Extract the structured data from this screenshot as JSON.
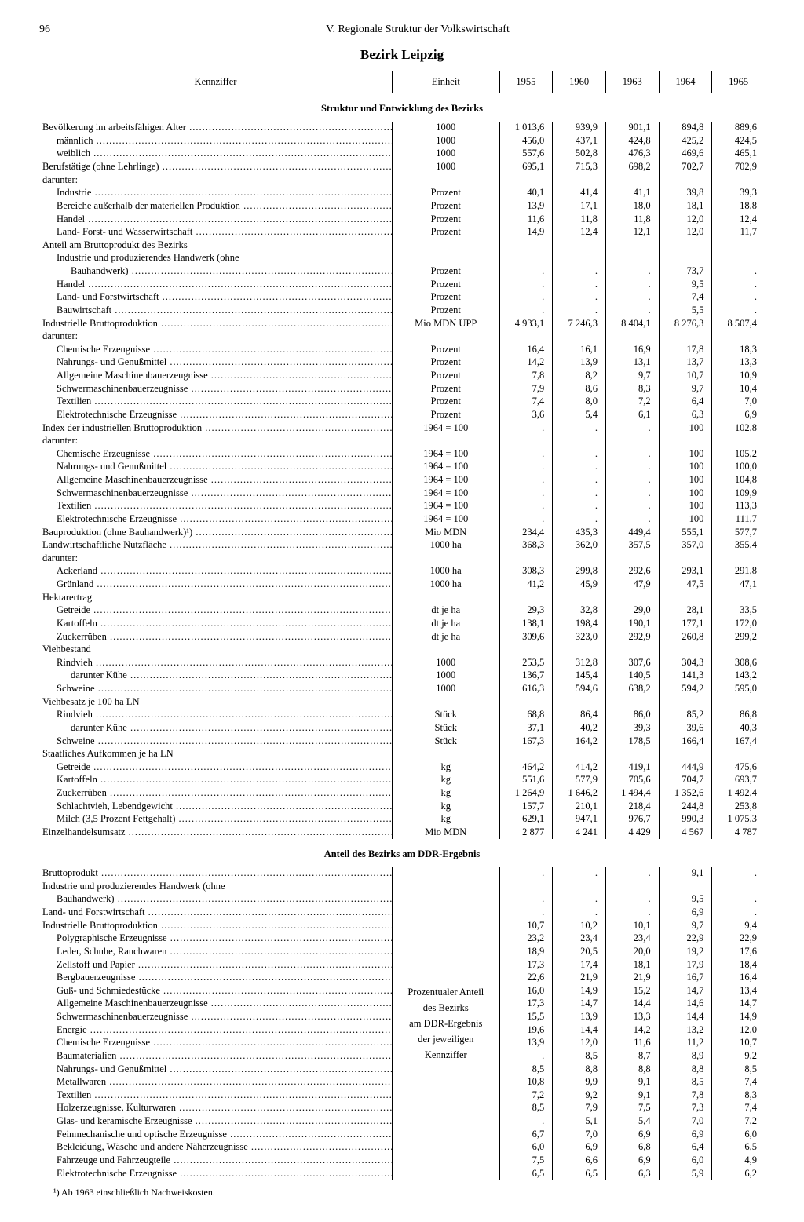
{
  "page_number": "96",
  "chapter_title": "V. Regionale Struktur der Volkswirtschaft",
  "region_title": "Bezirk Leipzig",
  "columns": [
    "Kennziffer",
    "Einheit",
    "1955",
    "1960",
    "1963",
    "1964",
    "1965"
  ],
  "section1_title": "Struktur und Entwicklung des Bezirks",
  "section2_title": "Anteil des Bezirks am DDR-Ergebnis",
  "merged_unit_lines": [
    "Prozentualer Anteil",
    "des Bezirks",
    "am DDR-Ergebnis",
    "der jeweiligen",
    "Kennziffer"
  ],
  "footnote": "¹) Ab 1963 einschließlich Nachweiskosten.",
  "rows1": [
    {
      "l": "Bevölkerung im arbeitsfähigen Alter",
      "d": 1,
      "i": 0,
      "u": "1000",
      "v": [
        "1 013,6",
        "939,9",
        "901,1",
        "894,8",
        "889,6"
      ]
    },
    {
      "l": "männlich",
      "d": 1,
      "i": 1,
      "u": "1000",
      "v": [
        "456,0",
        "437,1",
        "424,8",
        "425,2",
        "424,5"
      ]
    },
    {
      "l": "weiblich",
      "d": 1,
      "i": 1,
      "u": "1000",
      "v": [
        "557,6",
        "502,8",
        "476,3",
        "469,6",
        "465,1"
      ]
    },
    {
      "l": "Berufstätige (ohne Lehrlinge)",
      "d": 1,
      "i": 0,
      "u": "1000",
      "v": [
        "695,1",
        "715,3",
        "698,2",
        "702,7",
        "702,9"
      ]
    },
    {
      "l": "darunter:",
      "d": 0,
      "i": 0,
      "u": "",
      "v": [
        "",
        "",
        "",
        "",
        ""
      ]
    },
    {
      "l": "Industrie",
      "d": 1,
      "i": 1,
      "u": "Prozent",
      "v": [
        "40,1",
        "41,4",
        "41,1",
        "39,8",
        "39,3"
      ]
    },
    {
      "l": "Bereiche außerhalb der materiellen Produktion",
      "d": 1,
      "i": 1,
      "u": "Prozent",
      "v": [
        "13,9",
        "17,1",
        "18,0",
        "18,1",
        "18,8"
      ]
    },
    {
      "l": "Handel",
      "d": 1,
      "i": 1,
      "u": "Prozent",
      "v": [
        "11,6",
        "11,8",
        "11,8",
        "12,0",
        "12,4"
      ]
    },
    {
      "l": "Land- Forst- und Wasserwirtschaft",
      "d": 1,
      "i": 1,
      "u": "Prozent",
      "v": [
        "14,9",
        "12,4",
        "12,1",
        "12,0",
        "11,7"
      ]
    },
    {
      "l": "Anteil am Bruttoprodukt des Bezirks",
      "d": 0,
      "i": 0,
      "u": "",
      "v": [
        "",
        "",
        "",
        "",
        ""
      ]
    },
    {
      "l": "Industrie und produzierendes Handwerk (ohne",
      "d": 0,
      "i": 1,
      "u": "",
      "v": [
        "",
        "",
        "",
        "",
        ""
      ]
    },
    {
      "l": "Bauhandwerk)",
      "d": 1,
      "i": 2,
      "u": "Prozent",
      "v": [
        ".",
        ".",
        ".",
        "73,7",
        "."
      ]
    },
    {
      "l": "Handel",
      "d": 1,
      "i": 1,
      "u": "Prozent",
      "v": [
        ".",
        ".",
        ".",
        "9,5",
        "."
      ]
    },
    {
      "l": "Land- und Forstwirtschaft",
      "d": 1,
      "i": 1,
      "u": "Prozent",
      "v": [
        ".",
        ".",
        ".",
        "7,4",
        "."
      ]
    },
    {
      "l": "Bauwirtschaft",
      "d": 1,
      "i": 1,
      "u": "Prozent",
      "v": [
        ".",
        ".",
        ".",
        "5,5",
        "."
      ]
    },
    {
      "l": "Industrielle Bruttoproduktion",
      "d": 1,
      "i": 0,
      "u": "Mio MDN UPP",
      "v": [
        "4 933,1",
        "7 246,3",
        "8 404,1",
        "8 276,3",
        "8 507,4"
      ]
    },
    {
      "l": "darunter:",
      "d": 0,
      "i": 0,
      "u": "",
      "v": [
        "",
        "",
        "",
        "",
        ""
      ]
    },
    {
      "l": "Chemische Erzeugnisse",
      "d": 1,
      "i": 1,
      "u": "Prozent",
      "v": [
        "16,4",
        "16,1",
        "16,9",
        "17,8",
        "18,3"
      ]
    },
    {
      "l": "Nahrungs- und Genußmittel",
      "d": 1,
      "i": 1,
      "u": "Prozent",
      "v": [
        "14,2",
        "13,9",
        "13,1",
        "13,7",
        "13,3"
      ]
    },
    {
      "l": "Allgemeine Maschinenbauerzeugnisse",
      "d": 1,
      "i": 1,
      "u": "Prozent",
      "v": [
        "7,8",
        "8,2",
        "9,7",
        "10,7",
        "10,9"
      ]
    },
    {
      "l": "Schwermaschinenbauerzeugnisse",
      "d": 1,
      "i": 1,
      "u": "Prozent",
      "v": [
        "7,9",
        "8,6",
        "8,3",
        "9,7",
        "10,4"
      ]
    },
    {
      "l": "Textilien",
      "d": 1,
      "i": 1,
      "u": "Prozent",
      "v": [
        "7,4",
        "8,0",
        "7,2",
        "6,4",
        "7,0"
      ]
    },
    {
      "l": "Elektrotechnische Erzeugnisse",
      "d": 1,
      "i": 1,
      "u": "Prozent",
      "v": [
        "3,6",
        "5,4",
        "6,1",
        "6,3",
        "6,9"
      ]
    },
    {
      "l": "Index der industriellen Bruttoproduktion",
      "d": 1,
      "i": 0,
      "u": "1964 = 100",
      "v": [
        ".",
        ".",
        ".",
        "100",
        "102,8"
      ]
    },
    {
      "l": "darunter:",
      "d": 0,
      "i": 0,
      "u": "",
      "v": [
        "",
        "",
        "",
        "",
        ""
      ]
    },
    {
      "l": "Chemische Erzeugnisse",
      "d": 1,
      "i": 1,
      "u": "1964 = 100",
      "v": [
        ".",
        ".",
        ".",
        "100",
        "105,2"
      ]
    },
    {
      "l": "Nahrungs- und Genußmittel",
      "d": 1,
      "i": 1,
      "u": "1964 = 100",
      "v": [
        ".",
        ".",
        ".",
        "100",
        "100,0"
      ]
    },
    {
      "l": "Allgemeine Maschinenbauerzeugnisse",
      "d": 1,
      "i": 1,
      "u": "1964 = 100",
      "v": [
        ".",
        ".",
        ".",
        "100",
        "104,8"
      ]
    },
    {
      "l": "Schwermaschinenbauerzeugnisse",
      "d": 1,
      "i": 1,
      "u": "1964 = 100",
      "v": [
        ".",
        ".",
        ".",
        "100",
        "109,9"
      ]
    },
    {
      "l": "Textilien",
      "d": 1,
      "i": 1,
      "u": "1964 = 100",
      "v": [
        ".",
        ".",
        ".",
        "100",
        "113,3"
      ]
    },
    {
      "l": "Elektrotechnische Erzeugnisse",
      "d": 1,
      "i": 1,
      "u": "1964 = 100",
      "v": [
        ".",
        ".",
        ".",
        "100",
        "111,7"
      ]
    },
    {
      "l": "Bauproduktion (ohne Bauhandwerk)¹)",
      "d": 1,
      "i": 0,
      "u": "Mio MDN",
      "v": [
        "234,4",
        "435,3",
        "449,4",
        "555,1",
        "577,7"
      ]
    },
    {
      "l": "Landwirtschaftliche Nutzfläche",
      "d": 1,
      "i": 0,
      "u": "1000 ha",
      "v": [
        "368,3",
        "362,0",
        "357,5",
        "357,0",
        "355,4"
      ]
    },
    {
      "l": "darunter:",
      "d": 0,
      "i": 0,
      "u": "",
      "v": [
        "",
        "",
        "",
        "",
        ""
      ]
    },
    {
      "l": "Ackerland",
      "d": 1,
      "i": 1,
      "u": "1000 ha",
      "v": [
        "308,3",
        "299,8",
        "292,6",
        "293,1",
        "291,8"
      ]
    },
    {
      "l": "Grünland",
      "d": 1,
      "i": 1,
      "u": "1000 ha",
      "v": [
        "41,2",
        "45,9",
        "47,9",
        "47,5",
        "47,1"
      ]
    },
    {
      "l": "Hektarertrag",
      "d": 0,
      "i": 0,
      "u": "",
      "v": [
        "",
        "",
        "",
        "",
        ""
      ]
    },
    {
      "l": "Getreide",
      "d": 1,
      "i": 1,
      "u": "dt je ha",
      "v": [
        "29,3",
        "32,8",
        "29,0",
        "28,1",
        "33,5"
      ]
    },
    {
      "l": "Kartoffeln",
      "d": 1,
      "i": 1,
      "u": "dt je ha",
      "v": [
        "138,1",
        "198,4",
        "190,1",
        "177,1",
        "172,0"
      ]
    },
    {
      "l": "Zuckerrüben",
      "d": 1,
      "i": 1,
      "u": "dt je ha",
      "v": [
        "309,6",
        "323,0",
        "292,9",
        "260,8",
        "299,2"
      ]
    },
    {
      "l": "Viehbestand",
      "d": 0,
      "i": 0,
      "u": "",
      "v": [
        "",
        "",
        "",
        "",
        ""
      ]
    },
    {
      "l": "Rindvieh",
      "d": 1,
      "i": 1,
      "u": "1000",
      "v": [
        "253,5",
        "312,8",
        "307,6",
        "304,3",
        "308,6"
      ]
    },
    {
      "l": "darunter Kühe",
      "d": 1,
      "i": 2,
      "u": "1000",
      "v": [
        "136,7",
        "145,4",
        "140,5",
        "141,3",
        "143,2"
      ]
    },
    {
      "l": "Schweine",
      "d": 1,
      "i": 1,
      "u": "1000",
      "v": [
        "616,3",
        "594,6",
        "638,2",
        "594,2",
        "595,0"
      ]
    },
    {
      "l": "Viehbesatz je 100 ha LN",
      "d": 0,
      "i": 0,
      "u": "",
      "v": [
        "",
        "",
        "",
        "",
        ""
      ]
    },
    {
      "l": "Rindvieh",
      "d": 1,
      "i": 1,
      "u": "Stück",
      "v": [
        "68,8",
        "86,4",
        "86,0",
        "85,2",
        "86,8"
      ]
    },
    {
      "l": "darunter Kühe",
      "d": 1,
      "i": 2,
      "u": "Stück",
      "v": [
        "37,1",
        "40,2",
        "39,3",
        "39,6",
        "40,3"
      ]
    },
    {
      "l": "Schweine",
      "d": 1,
      "i": 1,
      "u": "Stück",
      "v": [
        "167,3",
        "164,2",
        "178,5",
        "166,4",
        "167,4"
      ]
    },
    {
      "l": "Staatliches Aufkommen je ha LN",
      "d": 0,
      "i": 0,
      "u": "",
      "v": [
        "",
        "",
        "",
        "",
        ""
      ]
    },
    {
      "l": "Getreide",
      "d": 1,
      "i": 1,
      "u": "kg",
      "v": [
        "464,2",
        "414,2",
        "419,1",
        "444,9",
        "475,6"
      ]
    },
    {
      "l": "Kartoffeln",
      "d": 1,
      "i": 1,
      "u": "kg",
      "v": [
        "551,6",
        "577,9",
        "705,6",
        "704,7",
        "693,7"
      ]
    },
    {
      "l": "Zuckerrüben",
      "d": 1,
      "i": 1,
      "u": "kg",
      "v": [
        "1 264,9",
        "1 646,2",
        "1 494,4",
        "1 352,6",
        "1 492,4"
      ]
    },
    {
      "l": "Schlachtvieh, Lebendgewicht",
      "d": 1,
      "i": 1,
      "u": "kg",
      "v": [
        "157,7",
        "210,1",
        "218,4",
        "244,8",
        "253,8"
      ]
    },
    {
      "l": "Milch (3,5 Prozent Fettgehalt)",
      "d": 1,
      "i": 1,
      "u": "kg",
      "v": [
        "629,1",
        "947,1",
        "976,7",
        "990,3",
        "1 075,3"
      ]
    },
    {
      "l": "Einzelhandelsumsatz",
      "d": 1,
      "i": 0,
      "u": "Mio MDN",
      "v": [
        "2 877",
        "4 241",
        "4 429",
        "4 567",
        "4 787"
      ]
    }
  ],
  "rows2": [
    {
      "l": "Bruttoprodukt",
      "d": 1,
      "i": 0,
      "v": [
        ".",
        ".",
        ".",
        "9,1",
        "."
      ]
    },
    {
      "l": "Industrie und produzierendes Handwerk (ohne",
      "d": 0,
      "i": 0,
      "v": [
        "",
        "",
        "",
        "",
        ""
      ]
    },
    {
      "l": "Bauhandwerk)",
      "d": 1,
      "i": 1,
      "v": [
        ".",
        ".",
        ".",
        "9,5",
        "."
      ]
    },
    {
      "l": "Land- und Forstwirtschaft",
      "d": 1,
      "i": 0,
      "v": [
        ".",
        ".",
        ".",
        "6,9",
        "."
      ]
    },
    {
      "l": "Industrielle Bruttoproduktion",
      "d": 1,
      "i": 0,
      "v": [
        "10,7",
        "10,2",
        "10,1",
        "9,7",
        "9,4"
      ]
    },
    {
      "l": "Polygraphische Erzeugnisse",
      "d": 1,
      "i": 1,
      "v": [
        "23,2",
        "23,4",
        "23,4",
        "22,9",
        "22,9"
      ]
    },
    {
      "l": "Leder, Schuhe, Rauchwaren",
      "d": 1,
      "i": 1,
      "v": [
        "18,9",
        "20,5",
        "20,0",
        "19,2",
        "17,6"
      ]
    },
    {
      "l": "Zellstoff und Papier",
      "d": 1,
      "i": 1,
      "v": [
        "17,3",
        "17,4",
        "18,1",
        "17,9",
        "18,4"
      ]
    },
    {
      "l": "Bergbauerzeugnisse",
      "d": 1,
      "i": 1,
      "v": [
        "22,6",
        "21,9",
        "21,9",
        "16,7",
        "16,4"
      ]
    },
    {
      "l": "Guß- und Schmiedestücke",
      "d": 1,
      "i": 1,
      "v": [
        "16,0",
        "14,9",
        "15,2",
        "14,7",
        "13,4"
      ]
    },
    {
      "l": "Allgemeine Maschinenbauerzeugnisse",
      "d": 1,
      "i": 1,
      "v": [
        "17,3",
        "14,7",
        "14,4",
        "14,6",
        "14,7"
      ]
    },
    {
      "l": "Schwermaschinenbauerzeugnisse",
      "d": 1,
      "i": 1,
      "v": [
        "15,5",
        "13,9",
        "13,3",
        "14,4",
        "14,9"
      ]
    },
    {
      "l": "Energie",
      "d": 1,
      "i": 1,
      "v": [
        "19,6",
        "14,4",
        "14,2",
        "13,2",
        "12,0"
      ]
    },
    {
      "l": "Chemische Erzeugnisse",
      "d": 1,
      "i": 1,
      "v": [
        "13,9",
        "12,0",
        "11,6",
        "11,2",
        "10,7"
      ]
    },
    {
      "l": "Baumaterialien",
      "d": 1,
      "i": 1,
      "v": [
        ".",
        "8,5",
        "8,7",
        "8,9",
        "9,2"
      ]
    },
    {
      "l": "Nahrungs- und Genußmittel",
      "d": 1,
      "i": 1,
      "v": [
        "8,5",
        "8,8",
        "8,8",
        "8,8",
        "8,5"
      ]
    },
    {
      "l": "Metallwaren",
      "d": 1,
      "i": 1,
      "v": [
        "10,8",
        "9,9",
        "9,1",
        "8,5",
        "7,4"
      ]
    },
    {
      "l": "Textilien",
      "d": 1,
      "i": 1,
      "v": [
        "7,2",
        "9,2",
        "9,1",
        "7,8",
        "8,3"
      ]
    },
    {
      "l": "Holzerzeugnisse, Kulturwaren",
      "d": 1,
      "i": 1,
      "v": [
        "8,5",
        "7,9",
        "7,5",
        "7,3",
        "7,4"
      ]
    },
    {
      "l": "Glas- und keramische Erzeugnisse",
      "d": 1,
      "i": 1,
      "v": [
        ".",
        "5,1",
        "5,4",
        "7,0",
        "7,2"
      ]
    },
    {
      "l": "Feinmechanische und optische Erzeugnisse",
      "d": 1,
      "i": 1,
      "v": [
        "6,7",
        "7,0",
        "6,9",
        "6,9",
        "6,0"
      ]
    },
    {
      "l": "Bekleidung, Wäsche und andere Näherzeugnisse",
      "d": 1,
      "i": 1,
      "v": [
        "6,0",
        "6,9",
        "6,8",
        "6,4",
        "6,5"
      ]
    },
    {
      "l": "Fahrzeuge und Fahrzeugteile",
      "d": 1,
      "i": 1,
      "v": [
        "7,5",
        "6,6",
        "6,9",
        "6,0",
        "4,9"
      ]
    },
    {
      "l": "Elektrotechnische Erzeugnisse",
      "d": 1,
      "i": 1,
      "v": [
        "6,5",
        "6,5",
        "6,3",
        "5,9",
        "6,2"
      ]
    }
  ]
}
